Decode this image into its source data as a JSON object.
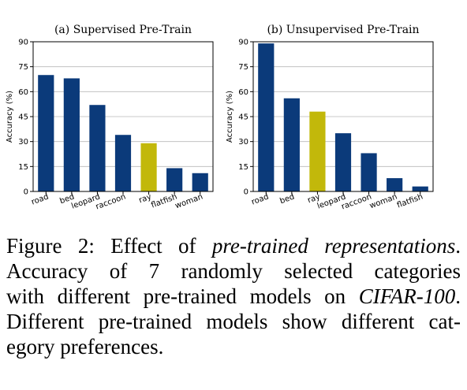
{
  "colors": {
    "bar": "#0b3a7a",
    "highlight": "#c2b80a",
    "axis": "#000000",
    "grid": "#b8b8b8",
    "text": "#000000"
  },
  "chart_data": [
    {
      "type": "bar",
      "title": "(a) Supervised Pre-Train",
      "xlabel": "",
      "ylabel": "Accuracy (%)",
      "ylim": [
        0,
        90
      ],
      "yticks": [
        "0",
        "15",
        "30",
        "45",
        "60",
        "75",
        "90"
      ],
      "grid": true,
      "categories": [
        "road",
        "bed",
        "leopard",
        "raccoon",
        "ray",
        "flatfish",
        "woman"
      ],
      "values": [
        70,
        68,
        52,
        34,
        29,
        14,
        11
      ],
      "highlighted": [
        "ray"
      ]
    },
    {
      "type": "bar",
      "title": "(b) Unsupervised Pre-Train",
      "xlabel": "",
      "ylabel": "Accuracy (%)",
      "ylim": [
        0,
        90
      ],
      "yticks": [
        "0",
        "15",
        "30",
        "45",
        "60",
        "75",
        "90"
      ],
      "grid": true,
      "categories": [
        "road",
        "bed",
        "ray",
        "leopard",
        "raccoon",
        "woman",
        "flatfish"
      ],
      "values": [
        89,
        56,
        48,
        35,
        23,
        8,
        3
      ],
      "highlighted": [
        "ray"
      ]
    }
  ],
  "caption": {
    "label": "Figure 2: Effect of ",
    "emphasis": "pre-trained representations",
    "period": ".",
    "line2": "Accuracy of 7 randomly selected categories",
    "line3_pre": "with different pre-trained models on ",
    "line3_em": "CIFAR-100",
    "line3_post": ".",
    "line4": "Different pre-trained models show different cat-",
    "line5": "egory preferences."
  }
}
